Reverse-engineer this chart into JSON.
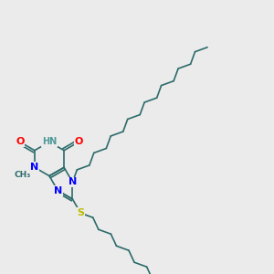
{
  "bg_color": "#ebebeb",
  "bond_color": "#2d6b6b",
  "bond_width": 1.2,
  "atom_colors": {
    "N": "#0000ff",
    "O": "#ff0000",
    "S": "#bbbb00",
    "H": "#4d9999",
    "C": "#2d6b6b"
  },
  "figsize": [
    3.0,
    3.0
  ],
  "dpi": 100,
  "xlim": [
    0,
    10
  ],
  "ylim": [
    0,
    10
  ],
  "core_x": 1.8,
  "core_y": 4.2,
  "ring_scale": 0.62
}
